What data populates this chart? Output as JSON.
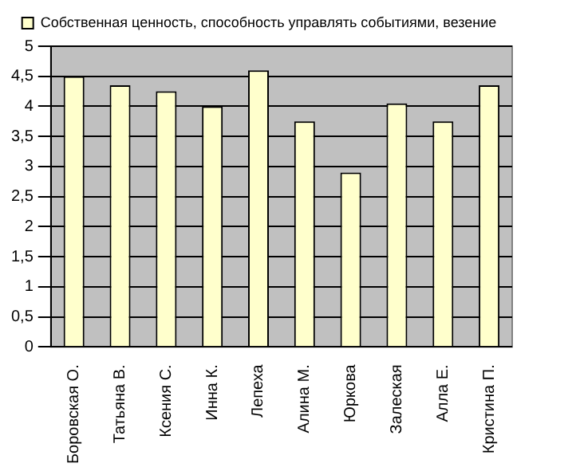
{
  "chart_data": {
    "type": "bar",
    "categories": [
      "Боровская О.",
      "Татьяна В.",
      "Ксения С.",
      "Инна К.",
      "Лепеха",
      "Алина М.",
      "Юркова",
      "Залеская",
      "Алла Е.",
      "Кристина П."
    ],
    "series": [
      {
        "name": "Собственная ценность, способность управлять событиями, везение",
        "color": "#ffffcc",
        "values": [
          4.5,
          4.35,
          4.25,
          4.0,
          4.6,
          3.75,
          2.9,
          4.05,
          3.75,
          4.35
        ]
      }
    ],
    "ylim": [
      0,
      5
    ],
    "yticks": [
      0,
      {
        "value": 0.5,
        "label": "0,5"
      },
      1,
      {
        "value": 1.5,
        "label": "1,5"
      },
      2,
      {
        "value": 2.5,
        "label": "2,5"
      },
      3,
      {
        "value": 3.5,
        "label": "3,5"
      },
      4,
      {
        "value": 4.5,
        "label": "4,5"
      },
      5
    ],
    "grid": "y",
    "legend": "top"
  }
}
